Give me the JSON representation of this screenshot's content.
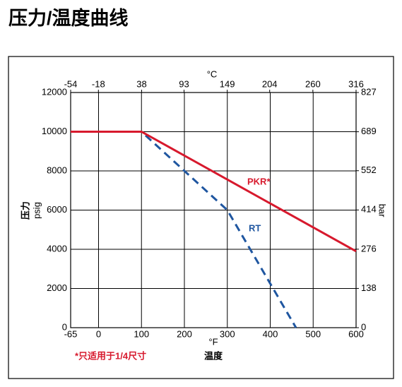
{
  "chart_data": {
    "type": "line",
    "title": "压力/温度曲线",
    "x_label": "°F",
    "x_title": "温度",
    "x2_label": "°C",
    "y_title": "压力",
    "y_label": "psig",
    "y2_label": "bar",
    "footnote": "*只适用于1/4尺寸",
    "xlim": [
      -65,
      600
    ],
    "xticks": [
      -65,
      0,
      100,
      200,
      300,
      400,
      500,
      600
    ],
    "x2lim": [
      -54,
      316
    ],
    "x2ticks": [
      -54,
      -18,
      38,
      93,
      149,
      204,
      260,
      316
    ],
    "ylim": [
      0,
      12000
    ],
    "yticks": [
      0,
      2000,
      4000,
      6000,
      8000,
      10000,
      12000
    ],
    "y2lim": [
      0,
      827
    ],
    "y2ticks": [
      0,
      138,
      276,
      414,
      552,
      689,
      827
    ],
    "grid": true,
    "series": [
      {
        "name": "PKR*",
        "color": "#d7192d",
        "dash": false,
        "x": [
          -65,
          100,
          600
        ],
        "values": [
          10000,
          10000,
          3900
        ]
      },
      {
        "name": "RT",
        "color": "#1f56a0",
        "dash": true,
        "x": [
          -65,
          100,
          300,
          460
        ],
        "values": [
          10000,
          10000,
          6000,
          0
        ]
      }
    ]
  }
}
